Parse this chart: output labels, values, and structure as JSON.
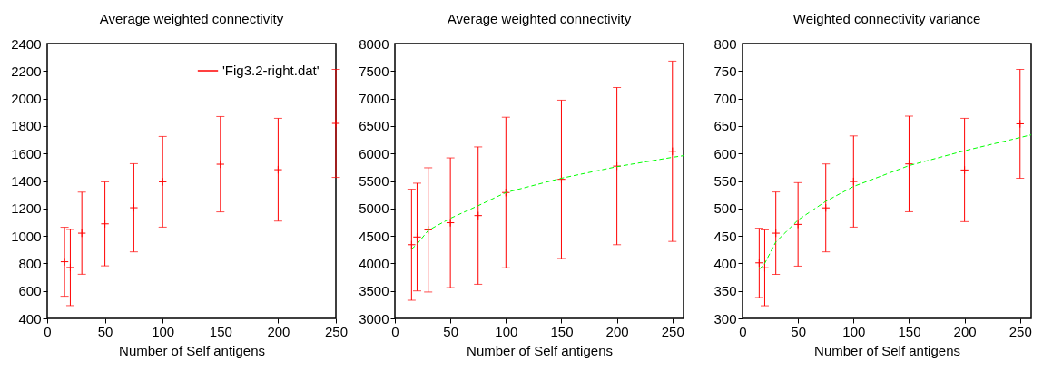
{
  "chart_data": [
    {
      "type": "scatter",
      "title": "Average weighted connectivity",
      "xlabel": "Number of Self antigens",
      "xlim": [
        0,
        250
      ],
      "xticks": [
        0,
        50,
        100,
        150,
        200,
        250
      ],
      "ylim": [
        400,
        2400
      ],
      "yticks": [
        400,
        600,
        800,
        1000,
        1200,
        1400,
        1600,
        1800,
        2000,
        2200,
        2400
      ],
      "legend": "top right",
      "series": [
        {
          "name": "'Fig3.2-right.dat'",
          "color": "#ff0000",
          "marker": "cross",
          "x": [
            15,
            20,
            30,
            50,
            75,
            100,
            150,
            200,
            250
          ],
          "values": [
            812,
            770,
            1020,
            1088,
            1205,
            1394,
            1522,
            1482,
            1819
          ],
          "errors": [
            251,
            277,
            299,
            306,
            321,
            330,
            347,
            374,
            393
          ]
        }
      ]
    },
    {
      "type": "scatter",
      "title": "Average weighted connectivity",
      "xlabel": "Number of Self antigens",
      "xlim": [
        0,
        260
      ],
      "xticks": [
        0,
        50,
        100,
        150,
        200,
        250
      ],
      "ylim": [
        3000,
        8000
      ],
      "yticks": [
        3000,
        3500,
        4000,
        4500,
        5000,
        5500,
        6000,
        6500,
        7000,
        7500,
        8000
      ],
      "series": [
        {
          "color": "#ff0000",
          "marker": "cross",
          "x": [
            15,
            20,
            30,
            50,
            75,
            100,
            150,
            200,
            250
          ],
          "values": [
            4340,
            4480,
            4610,
            4740,
            4870,
            5290,
            5530,
            5770,
            6040
          ],
          "errors": [
            1010,
            980,
            1130,
            1180,
            1250,
            1370,
            1440,
            1430,
            1640
          ]
        },
        {
          "type": "line",
          "color": "#00ff00",
          "line_style": "dashed",
          "x": [
            15,
            20,
            30,
            50,
            75,
            100,
            150,
            200,
            250,
            260
          ],
          "values": [
            4260,
            4350,
            4600,
            4820,
            5050,
            5290,
            5550,
            5760,
            5930,
            5960
          ]
        }
      ]
    },
    {
      "type": "scatter",
      "title": "Weighted connectivity variance",
      "xlabel": "Number of Self antigens",
      "xlim": [
        0,
        260
      ],
      "xticks": [
        0,
        50,
        100,
        150,
        200,
        250
      ],
      "ylim": [
        300,
        800
      ],
      "yticks": [
        300,
        350,
        400,
        450,
        500,
        550,
        600,
        650,
        700,
        750,
        800
      ],
      "series": [
        {
          "color": "#ff0000",
          "marker": "cross",
          "x": [
            15,
            20,
            30,
            50,
            75,
            100,
            150,
            200,
            250
          ],
          "values": [
            401,
            392,
            455,
            471,
            501,
            549,
            581,
            570,
            654
          ],
          "errors": [
            63,
            69,
            75,
            76,
            80,
            83,
            87,
            94,
            99
          ]
        },
        {
          "type": "line",
          "color": "#00ff00",
          "line_style": "dashed",
          "x": [
            15,
            20,
            30,
            50,
            75,
            100,
            150,
            200,
            250,
            260
          ],
          "values": [
            389,
            400,
            439,
            479,
            513,
            540,
            578,
            605,
            629,
            634
          ]
        }
      ]
    }
  ]
}
